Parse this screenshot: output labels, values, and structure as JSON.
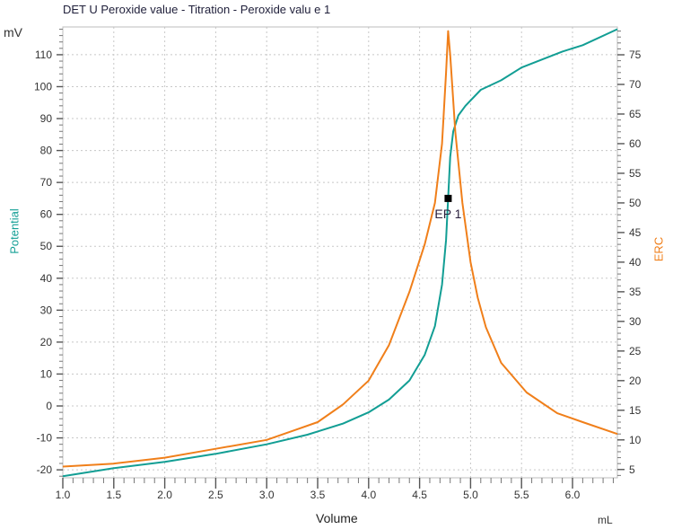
{
  "title": "DET U Peroxide value - Titration - Peroxide valu e 1",
  "units": {
    "left": "mV",
    "bottom": "mL"
  },
  "axes": {
    "left_label": "Potential",
    "right_label": "ERC",
    "bottom_label": "Volume"
  },
  "colors": {
    "potential": "#129e94",
    "erc": "#f07f1a",
    "grid": "#c8c8c8",
    "frame": "#bdbdbd",
    "marker": "#000000"
  },
  "chart_data": {
    "type": "line",
    "title": "DET U Peroxide value - Titration - Peroxide valu e 1",
    "xlabel": "Volume",
    "xunit": "mL",
    "ylabel": "Potential",
    "yunit": "mV",
    "y2label": "ERC",
    "xlim": [
      1.0,
      6.44
    ],
    "ylim": [
      -22.5,
      118.7
    ],
    "y2lim": [
      3.6,
      79.7
    ],
    "x_ticks": [
      "1.0",
      "1.5",
      "2.0",
      "2.5",
      "3.0",
      "3.5",
      "4.0",
      "4.5",
      "5.0",
      "5.5",
      "6.0"
    ],
    "y_ticks": [
      "-20",
      "-10",
      "0",
      "10",
      "20",
      "30",
      "40",
      "50",
      "60",
      "70",
      "80",
      "90",
      "100",
      "110"
    ],
    "y2_ticks": [
      "5",
      "10",
      "15",
      "20",
      "25",
      "30",
      "35",
      "40",
      "45",
      "50",
      "55",
      "60",
      "65",
      "70",
      "75"
    ],
    "grid": true,
    "series": [
      {
        "name": "Potential",
        "axis": "left",
        "color": "#129e94",
        "x": [
          1.0,
          1.5,
          2.0,
          2.5,
          3.0,
          3.4,
          3.5,
          3.75,
          4.0,
          4.2,
          4.4,
          4.55,
          4.65,
          4.72,
          4.76,
          4.78,
          4.8,
          4.83,
          4.88,
          4.95,
          5.1,
          5.3,
          5.5,
          5.7,
          5.9,
          6.1,
          6.44
        ],
        "values": [
          -22,
          -19.5,
          -17.5,
          -15,
          -12,
          -9,
          -8,
          -5.5,
          -2,
          2,
          8,
          16,
          25,
          38,
          52,
          65,
          78,
          86,
          91,
          94,
          99,
          102,
          106,
          108.5,
          111,
          113,
          118
        ]
      },
      {
        "name": "ERC",
        "axis": "right",
        "color": "#f07f1a",
        "x": [
          1.0,
          1.5,
          2.0,
          2.5,
          3.0,
          3.25,
          3.5,
          3.75,
          4.0,
          4.2,
          4.4,
          4.55,
          4.65,
          4.72,
          4.76,
          4.78,
          4.8,
          4.85,
          4.92,
          5.0,
          5.07,
          5.15,
          5.3,
          5.55,
          5.85,
          6.1,
          6.44
        ],
        "values": [
          5.5,
          6,
          7,
          8.5,
          10,
          11.5,
          13,
          16,
          20,
          26,
          35,
          43,
          50,
          60,
          72,
          79,
          75,
          62,
          50,
          40,
          34,
          29,
          23,
          18,
          14.5,
          13,
          11
        ]
      }
    ],
    "annotations": [
      {
        "label": "EP 1",
        "x": 4.78,
        "y": 65,
        "axis": "left"
      }
    ]
  }
}
